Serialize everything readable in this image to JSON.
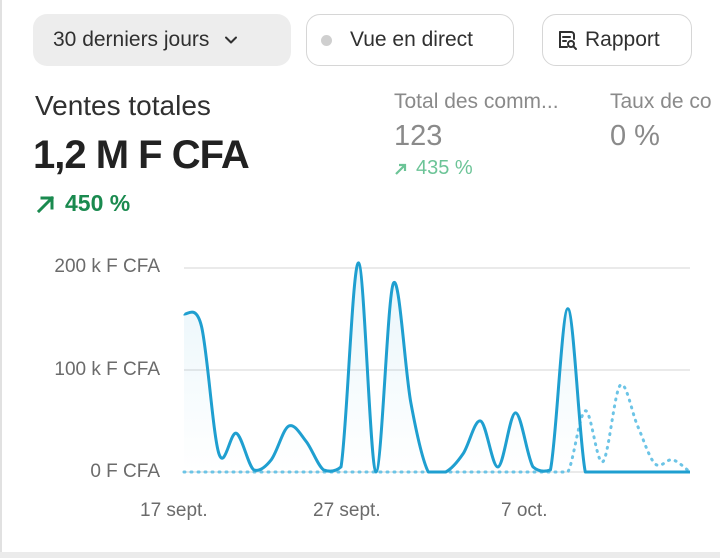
{
  "filters": {
    "range_label": "30 derniers jours",
    "live_label": "Vue en direct",
    "report_label": "Rapport"
  },
  "metrics": {
    "primary": {
      "title": "Ventes totales",
      "value": "1,2 M F CFA",
      "delta": "450 %"
    },
    "orders": {
      "title": "Total des comm...",
      "value": "123",
      "delta": "435 %"
    },
    "rate": {
      "title": "Taux de co",
      "value": "0 %"
    }
  },
  "colors": {
    "line": "#1f9fd0",
    "dotted": "#6cc4e6",
    "positive": "#1a8a4f",
    "positive_muted": "#6cc497",
    "grid": "#e3e3e3"
  },
  "chart_data": {
    "type": "line",
    "y_tick_labels": [
      "200 k F CFA",
      "100 k F CFA",
      "0 F CFA"
    ],
    "y_ticks": [
      200,
      100,
      0
    ],
    "ylim": [
      0,
      200
    ],
    "x_tick_labels": [
      "17 sept.",
      "27 sept.",
      "7 oct."
    ],
    "x_tick_index": [
      0,
      10,
      20
    ],
    "series": [
      {
        "values": [
          155,
          143,
          18,
          38,
          2,
          12,
          45,
          30,
          2,
          5,
          205,
          0,
          185,
          68,
          0,
          0,
          18,
          50,
          5,
          58,
          5,
          2,
          160,
          0,
          0,
          0,
          0,
          0,
          0,
          0
        ],
        "style": "solid"
      },
      {
        "values": [
          0,
          0,
          0,
          0,
          0,
          0,
          0,
          0,
          0,
          0,
          0,
          0,
          0,
          0,
          0,
          0,
          0,
          0,
          0,
          0,
          0,
          0,
          0,
          60,
          10,
          85,
          45,
          8,
          12,
          0
        ],
        "style": "dotted"
      }
    ]
  }
}
